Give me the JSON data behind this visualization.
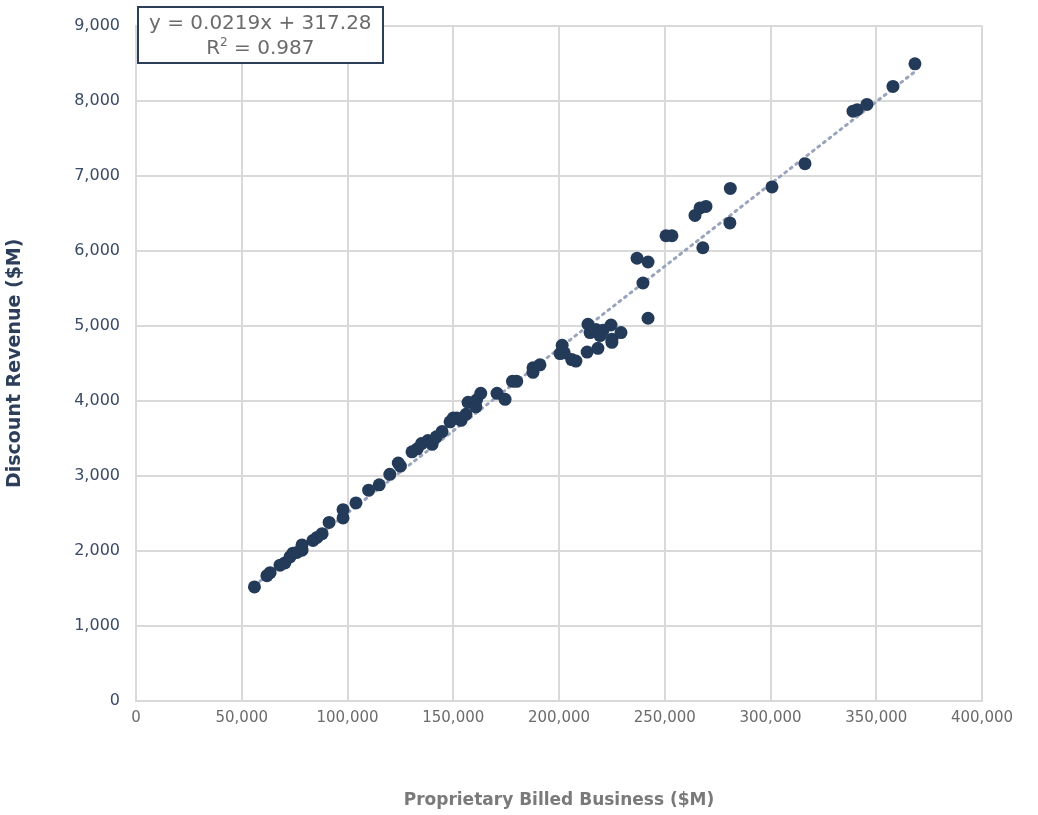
{
  "chart_data": {
    "type": "scatter",
    "xlabel": "Proprietary Billed Business ($M)",
    "ylabel": "Discount Revenue ($M)",
    "annotations": [
      "y = 0.0219x + 317.28",
      "R$^{2}$ = 0.987"
    ],
    "xlim": [
      0,
      400000
    ],
    "ylim": [
      0,
      9000
    ],
    "xticks": [
      0,
      {
        "value": 50000,
        "label": "50,000"
      },
      {
        "value": 100000,
        "label": "100,000"
      },
      {
        "value": 150000,
        "label": "150,000"
      },
      {
        "value": 200000,
        "label": "200,000"
      },
      {
        "value": 250000,
        "label": "250,000"
      },
      {
        "value": 300000,
        "label": "300,000"
      },
      {
        "value": 350000,
        "label": "350,000"
      },
      {
        "value": 400000,
        "label": "400,000"
      }
    ],
    "yticks": [
      0,
      {
        "value": 1000,
        "label": "1,000"
      },
      {
        "value": 2000,
        "label": "2,000"
      },
      {
        "value": 3000,
        "label": "3,000"
      },
      {
        "value": 4000,
        "label": "4,000"
      },
      {
        "value": 5000,
        "label": "5,000"
      },
      {
        "value": 6000,
        "label": "6,000"
      },
      {
        "value": 7000,
        "label": "7,000"
      },
      {
        "value": 8000,
        "label": "8,000"
      },
      {
        "value": 9000,
        "label": "9,000"
      }
    ],
    "grid": true,
    "legend": false,
    "marker": "circle",
    "series": [
      {
        "color": "#243a59",
        "x": [
          56000,
          61900,
          63400,
          68100,
          70400,
          72800,
          74200,
          76100,
          78500,
          78500,
          83700,
          85600,
          88000,
          91300,
          97900,
          97900,
          104000,
          110000,
          115000,
          120000,
          124000,
          125000,
          130500,
          133000,
          135000,
          138000,
          140000,
          142000,
          144700,
          148500,
          150000,
          151700,
          153700,
          156000,
          157000,
          160700,
          161000,
          163000,
          170700,
          174500,
          178000,
          180000,
          187700,
          187700,
          191000,
          200500,
          201500,
          202500,
          206000,
          208000,
          213700,
          213300,
          214700,
          217500,
          218400,
          219400,
          220800,
          224600,
          225000,
          225000,
          229300,
          236900,
          239700,
          242100,
          242100,
          250600,
          253400,
          264300,
          266700,
          269500,
          268000,
          280800,
          281000,
          300700,
          316300,
          339000,
          341000,
          345600,
          357900,
          368300
        ],
        "values": [
          1520,
          1670,
          1710,
          1810,
          1840,
          1920,
          1970,
          1980,
          2010,
          2080,
          2140,
          2180,
          2230,
          2380,
          2440,
          2550,
          2640,
          2810,
          2880,
          3020,
          3170,
          3130,
          3320,
          3360,
          3430,
          3470,
          3420,
          3520,
          3590,
          3720,
          3770,
          3770,
          3740,
          3820,
          3980,
          3920,
          4010,
          4100,
          4100,
          4020,
          4260,
          4260,
          4380,
          4440,
          4480,
          4630,
          4740,
          4640,
          4550,
          4530,
          5020,
          4650,
          4910,
          4950,
          4700,
          4870,
          4940,
          5010,
          4820,
          4780,
          4910,
          5900,
          5570,
          5850,
          5100,
          6200,
          6200,
          6470,
          6570,
          6590,
          6040,
          6370,
          6830,
          6850,
          7160,
          7860,
          7880,
          7950,
          8190,
          8490
        ]
      },
      {
        "type": "line",
        "color": "#9aa5bd",
        "line_style": "dotted",
        "marker": "none",
        "x": [
          56000,
          368000
        ],
        "values": [
          1540,
          8380
        ]
      }
    ]
  }
}
